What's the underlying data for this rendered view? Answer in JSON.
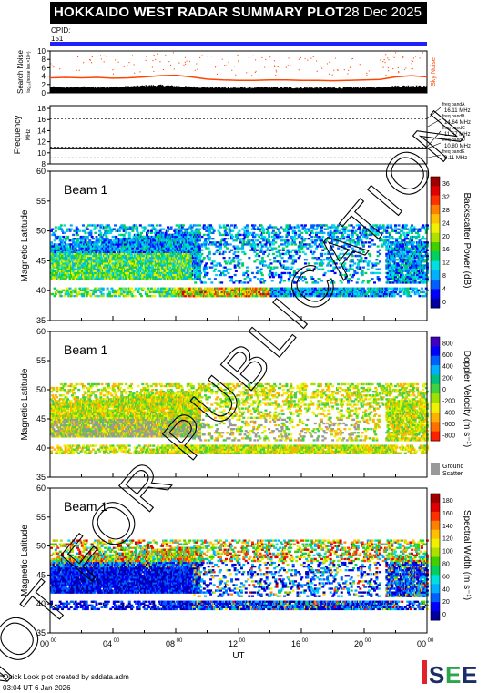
{
  "header": {
    "title": "HOKKAIDO WEST RADAR SUMMARY PLOT",
    "date": "28 Dec 2025"
  },
  "cpid": {
    "label": "CPID:",
    "value": "151"
  },
  "footer": {
    "line1": "Quick Look plot created by sddata.adm",
    "line2": "03:04 UT  6 Jan 2026"
  },
  "logo": {
    "text": "ISEE"
  },
  "watermark": "NOT FOR PUBLICATION",
  "colors": {
    "cpid_bar": "#2020ff",
    "noise": "#ff4500",
    "freq_line": "#000000"
  },
  "chart_data": [
    {
      "id": "noise",
      "type": "line",
      "ylabel": "Search Noise",
      "ysub": "log₁₀(noise lev.×10⁴)",
      "right_label": "Sky Noise",
      "yticks": [
        0,
        2,
        4,
        6,
        8,
        10
      ],
      "ylim": [
        0,
        10
      ],
      "x": [
        0,
        1,
        2,
        3,
        4,
        5,
        6,
        7,
        8,
        9,
        10,
        11,
        12,
        13,
        14,
        15,
        16,
        17,
        18,
        19,
        20,
        21,
        22,
        23,
        24
      ],
      "sky_noise": [
        3.6,
        3.7,
        3.6,
        3.7,
        3.5,
        3.6,
        3.8,
        4.1,
        4.2,
        3.8,
        3.3,
        3.1,
        3.0,
        3.0,
        3.1,
        3.1,
        3.0,
        3.0,
        2.9,
        3.0,
        3.1,
        3.2,
        3.8,
        4.1,
        3.8
      ],
      "search_noise": [
        1.2,
        1.1,
        1.2,
        1.1,
        1.2,
        1.3,
        1.5,
        1.6,
        1.4,
        1.2,
        1.1,
        1.0,
        1.0,
        1.0,
        1.1,
        1.0,
        1.0,
        1.0,
        1.0,
        1.0,
        1.1,
        1.2,
        1.4,
        1.5,
        1.3
      ]
    },
    {
      "id": "freq",
      "type": "line",
      "ylabel": "Frequency",
      "yunit": "MHz",
      "yticks": [
        8,
        10,
        12,
        14,
        16,
        18
      ],
      "ylim": [
        8,
        18.5
      ],
      "bands": [
        {
          "label": "freq bandA",
          "value": 16.11,
          "text": "16.11 MHz"
        },
        {
          "label": "freq bandB",
          "value": 14.64,
          "text": "14.64 MHz"
        },
        {
          "label": "freq bandC",
          "value": 11.07,
          "text": "11.07 MHz"
        },
        {
          "label": "freq bandD",
          "value": 10.8,
          "text": "10.80 MHz"
        },
        {
          "label": "freq bandE",
          "value": 9.11,
          "text": "9.11 MHz"
        }
      ],
      "operating_mhz": 10.8
    },
    {
      "id": "power",
      "type": "heatmap",
      "beam": "Beam 1",
      "ylabel": "Magnetic Latitude",
      "yticks": [
        35,
        40,
        45,
        50,
        55,
        60
      ],
      "ylim": [
        35,
        60
      ],
      "cbar_label": "Backscatter Power (dB)",
      "cbar_ticks": [
        "0",
        "4",
        "8",
        "12",
        "16",
        "20",
        "24",
        "28",
        "32",
        "36"
      ]
    },
    {
      "id": "velocity",
      "type": "heatmap",
      "beam": "Beam 1",
      "ylabel": "Magnetic Latitude",
      "yticks": [
        35,
        40,
        45,
        50,
        55,
        60
      ],
      "ylim": [
        35,
        60
      ],
      "cbar_label": "Doppler Velocity (m s⁻¹)",
      "cbar_ticks": [
        "800",
        "600",
        "400",
        "200",
        "0",
        "-200",
        "-400",
        "-600",
        "-800"
      ],
      "ground_label": "Ground Scatter"
    },
    {
      "id": "width",
      "type": "heatmap",
      "beam": "Beam 1",
      "ylabel": "Magnetic Latitude",
      "yticks": [
        35,
        40,
        45,
        50,
        55,
        60
      ],
      "ylim": [
        35,
        60
      ],
      "cbar_label": "Spectral Width (m s⁻¹)",
      "cbar_ticks": [
        "0",
        "20",
        "40",
        "60",
        "80",
        "100",
        "120",
        "140",
        "160",
        "180"
      ]
    }
  ],
  "xaxis": {
    "label": "UT",
    "ticks": [
      "00",
      "04",
      "08",
      "12",
      "16",
      "20",
      "00"
    ],
    "sup": "00"
  }
}
